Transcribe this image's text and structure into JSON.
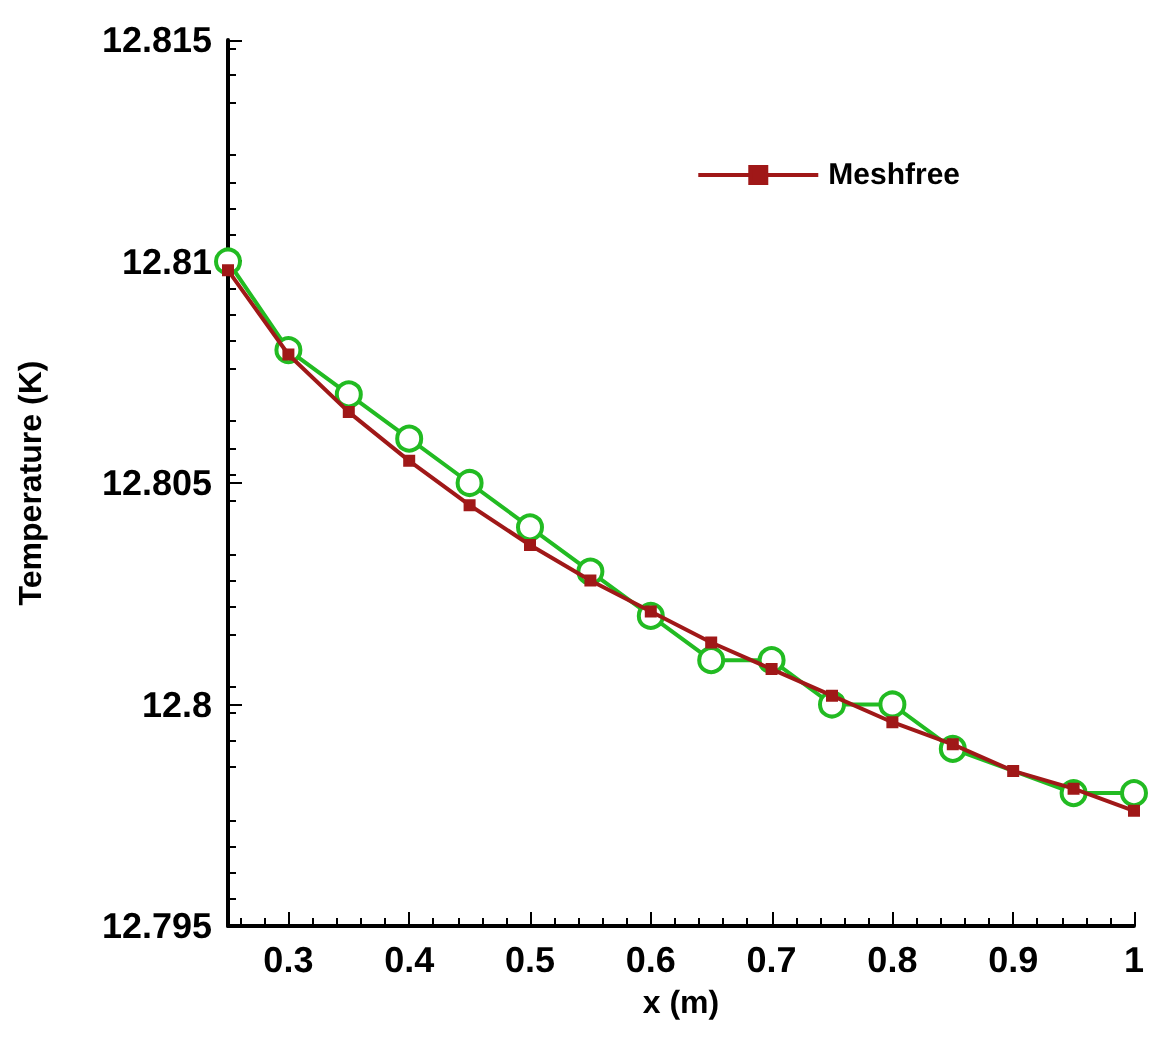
{
  "chart_data": {
    "type": "line",
    "xlabel": "x (m)",
    "ylabel": "Temperature (K)",
    "xlim": [
      0.25,
      1
    ],
    "xticks": [
      0.3,
      0.4,
      0.5,
      0.6,
      0.7,
      0.8,
      0.9,
      1
    ],
    "ylim": [
      12.795,
      12.815
    ],
    "yticks": [
      12.795,
      12.8,
      12.805,
      12.81,
      12.815
    ],
    "grid": false,
    "legend": "top right",
    "series": [
      {
        "name": "Meshfree",
        "color": "#a01818",
        "marker": "square",
        "x": [
          0.25,
          0.3,
          0.35,
          0.4,
          0.45,
          0.5,
          0.55,
          0.6,
          0.65,
          0.7,
          0.75,
          0.8,
          0.85,
          0.9,
          0.95,
          1
        ],
        "values": [
          12.8098,
          12.8079,
          12.8066,
          12.8055,
          12.8045,
          12.8036,
          12.8028,
          12.8021,
          12.8014,
          12.8008,
          12.8002,
          12.7996,
          12.7991,
          12.7985,
          12.7981,
          12.7976
        ]
      },
      {
        "color": "#22bb22",
        "marker": "circle",
        "x": [
          0.25,
          0.3,
          0.35,
          0.4,
          0.45,
          0.5,
          0.55,
          0.6,
          0.65,
          0.7,
          0.75,
          0.8,
          0.85,
          0.95,
          1
        ],
        "values": [
          12.81,
          12.808,
          12.807,
          12.806,
          12.805,
          12.804,
          12.803,
          12.802,
          12.801,
          12.801,
          12.8,
          12.8,
          12.799,
          12.798,
          12.798
        ]
      }
    ]
  }
}
